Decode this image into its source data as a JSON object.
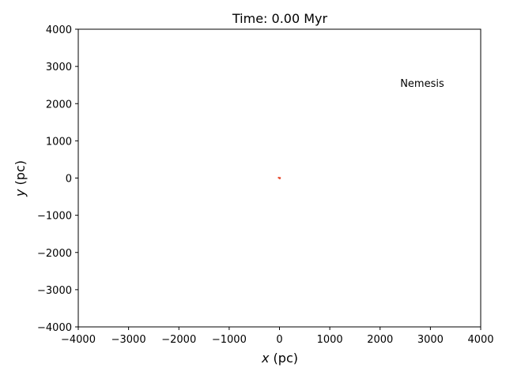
{
  "chart_data": {
    "type": "scatter",
    "title": "Time: 0.00 Myr",
    "xlabel_var": "x",
    "xlabel_unit": " (pc)",
    "ylabel_var": "y",
    "ylabel_unit": " (pc)",
    "xlim": [
      -4000,
      4000
    ],
    "ylim": [
      -4000,
      4000
    ],
    "xticks": [
      -4000,
      -3000,
      -2000,
      -1000,
      0,
      1000,
      2000,
      3000,
      4000
    ],
    "yticks": [
      -4000,
      -3000,
      -2000,
      -1000,
      0,
      1000,
      2000,
      3000,
      4000
    ],
    "tick_minus": "−",
    "grid": false,
    "series": [
      {
        "color": "#e8553a",
        "points": [
          {
            "x": -15,
            "y": 10
          },
          {
            "x": 5,
            "y": -10
          },
          {
            "x": 10,
            "y": 5
          }
        ]
      }
    ],
    "annotations": [
      {
        "text": "Nemesis",
        "x": 2400,
        "y": 2450
      }
    ]
  }
}
